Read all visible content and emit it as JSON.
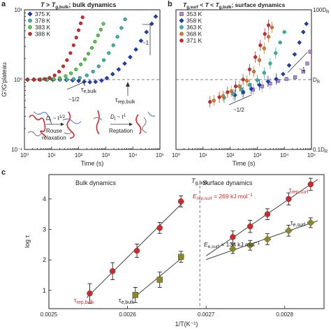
{
  "chart_data": [
    {
      "type": "scatter",
      "panel_label": "a",
      "title_parts": [
        "T",
        " > ",
        "T",
        "g,bulk",
        "; bulk dynamics"
      ],
      "xlabel": "Time (s)",
      "ylabel": "G′/G′plateau",
      "xscale": "log",
      "yscale": "log",
      "xlim": [
        1,
        100000
      ],
      "ylim": [
        0.1,
        10
      ],
      "x_ticks": [
        1,
        10,
        100,
        1000,
        10000,
        100000
      ],
      "x_tick_labels": [
        "10⁰",
        "10¹",
        "10²",
        "10³",
        "10⁴",
        "10⁵"
      ],
      "y_ticks": [
        0.1,
        1,
        10
      ],
      "y_tick_labels": [
        "10⁻¹",
        "10⁰",
        "10¹"
      ],
      "legend_position": "top-left",
      "series": [
        {
          "name": "375 K",
          "color": "#1a3fb4",
          "marker": "diamond",
          "points": [
            [
              1.3,
              1.0
            ],
            [
              2.2,
              1.0
            ],
            [
              3.8,
              1.0
            ],
            [
              6.5,
              1.0
            ],
            [
              11,
              1.0
            ],
            [
              20,
              1.0
            ],
            [
              35,
              0.99
            ],
            [
              60,
              0.98
            ],
            [
              100,
              0.96
            ],
            [
              160,
              0.93
            ],
            [
              260,
              0.92
            ],
            [
              420,
              0.93
            ],
            [
              700,
              0.97
            ],
            [
              1100,
              1.05
            ],
            [
              1800,
              1.2
            ],
            [
              3000,
              1.4
            ],
            [
              5000,
              1.7
            ],
            [
              8000,
              2.1
            ],
            [
              13000,
              2.7
            ],
            [
              20000,
              3.6
            ],
            [
              32000,
              4.8
            ],
            [
              50000,
              6.3
            ],
            [
              70000,
              8.0
            ]
          ]
        },
        {
          "name": "378 K",
          "color": "#2fb8a2",
          "marker": "circle",
          "points": [
            [
              1.3,
              1.0
            ],
            [
              2.3,
              1.0
            ],
            [
              4,
              1.0
            ],
            [
              7,
              1.0
            ],
            [
              12,
              1.0
            ],
            [
              21,
              1.0
            ],
            [
              37,
              1.0
            ],
            [
              65,
              1.02
            ],
            [
              110,
              1.06
            ],
            [
              200,
              1.15
            ],
            [
              340,
              1.3
            ],
            [
              550,
              1.55
            ],
            [
              850,
              1.9
            ],
            [
              1300,
              2.4
            ],
            [
              1900,
              3.1
            ],
            [
              2700,
              4.1
            ],
            [
              3800,
              5.5
            ],
            [
              5200,
              7.3
            ]
          ]
        },
        {
          "name": "383 K",
          "color": "#52c948",
          "marker": "circle",
          "points": [
            [
              1.3,
              1.0
            ],
            [
              2.3,
              1.0
            ],
            [
              4,
              1.0
            ],
            [
              7,
              1.0
            ],
            [
              12,
              1.02
            ],
            [
              20,
              1.05
            ],
            [
              33,
              1.12
            ],
            [
              52,
              1.23
            ],
            [
              80,
              1.4
            ],
            [
              120,
              1.65
            ],
            [
              170,
              1.95
            ],
            [
              230,
              2.35
            ],
            [
              310,
              2.85
            ],
            [
              400,
              3.5
            ],
            [
              520,
              4.3
            ],
            [
              660,
              5.2
            ],
            [
              820,
              6.3
            ]
          ]
        },
        {
          "name": "388 K",
          "color": "#d42828",
          "marker": "circle",
          "points": [
            [
              1.3,
              1.0
            ],
            [
              2.2,
              1.0
            ],
            [
              3.5,
              1.0
            ],
            [
              5.5,
              1.02
            ],
            [
              8.5,
              1.06
            ],
            [
              13,
              1.15
            ],
            [
              19,
              1.3
            ],
            [
              27,
              1.55
            ],
            [
              37,
              1.9
            ],
            [
              50,
              2.4
            ],
            [
              65,
              3.1
            ],
            [
              82,
              4.0
            ],
            [
              100,
              5.1
            ],
            [
              120,
              6.4
            ],
            [
              140,
              7.8
            ]
          ]
        }
      ],
      "annotations": [
        "~1",
        "~1/2",
        "τe,bulk",
        "τrep,bulk",
        "Rouse relaxation",
        "Reptation",
        "Dt ~ t1/2",
        "Dt ~ t1"
      ],
      "inset_labels": {
        "rouse_1": "Rouse",
        "rouse_2": "relaxation",
        "reptation": "Reptation",
        "slope_half": "~1/2",
        "slope_one": "~1",
        "tau_e": "τ",
        "tau_e_sub": "e,bulk",
        "tau_rep": "τ",
        "tau_rep_sub": "rep,bulk",
        "law_half_a": "D",
        "law_half_b": "t",
        "law_half_c": " ~ t",
        "law_half_d": "1/2",
        "law_one_a": "D",
        "law_one_b": "t",
        "law_one_c": " ~ t",
        "law_one_d": "1"
      }
    },
    {
      "type": "scatter",
      "panel_label": "b",
      "title_parts": [
        "T",
        "g,surf",
        " < ",
        "T",
        " < ",
        "T",
        "g,bulk",
        "; surface dynamics"
      ],
      "xlabel": "Time (s)",
      "xscale": "log",
      "yscale": "log",
      "xlim": [
        1,
        100000
      ],
      "ylim": [
        0.1,
        10
      ],
      "x_ticks": [
        1,
        10,
        100,
        1000,
        10000,
        100000
      ],
      "x_tick_labels": [
        "10⁰",
        "10¹",
        "10²",
        "10³",
        "10⁴",
        "10⁵"
      ],
      "right_ticks": [
        10,
        1,
        0.1
      ],
      "right_tick_labels": [
        "100D",
        "D",
        "0.1D"
      ],
      "right_tick_subs": [
        "R",
        "R",
        "R"
      ],
      "legend_position": "top-left",
      "series": [
        {
          "name": "353 K",
          "color": "#b085e0",
          "marker": "square",
          "points": [
            [
              300,
              0.66
            ],
            [
              700,
              0.72
            ],
            [
              1500,
              0.8
            ],
            [
              3000,
              0.88
            ],
            [
              6000,
              0.96
            ],
            [
              12000,
              1.02
            ],
            [
              25000,
              1.08
            ],
            [
              50000,
              1.3
            ],
            [
              70000,
              1.7
            ],
            [
              90000,
              2.5
            ]
          ]
        },
        {
          "name": "358 K",
          "color": "#1a3fb4",
          "marker": "diamond",
          "points": [
            [
              150,
              0.6
            ],
            [
              300,
              0.66
            ],
            [
              600,
              0.74
            ],
            [
              1200,
              0.84
            ],
            [
              2500,
              0.94
            ],
            [
              5000,
              1.02
            ],
            [
              9000,
              1.2
            ],
            [
              15000,
              1.6
            ],
            [
              24000,
              2.3
            ],
            [
              36000,
              3.4
            ],
            [
              50000,
              4.8
            ],
            [
              65000,
              6.3
            ]
          ]
        },
        {
          "name": "363 K",
          "color": "#2fb8a2",
          "marker": "circle",
          "points": [
            [
              60,
              0.55
            ],
            [
              130,
              0.62
            ],
            [
              260,
              0.72
            ],
            [
              520,
              0.84
            ],
            [
              1000,
              0.98
            ],
            [
              1800,
              1.25
            ],
            [
              3000,
              1.7
            ],
            [
              4800,
              2.4
            ],
            [
              7000,
              3.4
            ],
            [
              10000,
              4.8
            ]
          ]
        },
        {
          "name": "368 K",
          "color": "#e07820",
          "marker": "circle",
          "points": [
            [
              25,
              0.5
            ],
            [
              55,
              0.58
            ],
            [
              110,
              0.68
            ],
            [
              220,
              0.8
            ],
            [
              420,
              0.96
            ],
            [
              750,
              1.3
            ],
            [
              1200,
              1.9
            ],
            [
              1800,
              2.8
            ],
            [
              2600,
              4.1
            ],
            [
              3500,
              5.6
            ]
          ]
        },
        {
          "name": "371 K",
          "color": "#d42828",
          "marker": "circle",
          "points": [
            [
              18,
              0.48
            ],
            [
              40,
              0.56
            ],
            [
              80,
              0.66
            ],
            [
              160,
              0.8
            ],
            [
              300,
              1.0
            ],
            [
              520,
              1.4
            ],
            [
              850,
              2.1
            ],
            [
              1300,
              3.1
            ],
            [
              1900,
              4.5
            ],
            [
              2600,
              6.0
            ]
          ]
        }
      ],
      "annotations": [
        "~1",
        "~1/2",
        "DR",
        "100DR",
        "0.1DR"
      ],
      "inset_labels": {
        "slope_one": "~1",
        "slope_half": "~1/2"
      }
    },
    {
      "type": "scatter",
      "panel_label": "c",
      "xlabel": "1/T(K⁻¹)",
      "ylabel": "log τ",
      "xlim": [
        0.0025,
        0.00285
      ],
      "ylim": [
        0.4,
        4.8
      ],
      "x_ticks": [
        0.0025,
        0.0026,
        0.0027,
        0.0028
      ],
      "x_tick_labels": [
        "0.0025",
        "0.0026",
        "0.0027",
        "0.0028"
      ],
      "y_ticks": [
        1,
        2,
        3,
        4
      ],
      "y_tick_labels": [
        "1",
        "2",
        "3",
        "4"
      ],
      "vertical_marker": {
        "x": 0.002692,
        "label": "T",
        "label_sub": "g,bulk"
      },
      "region_labels": [
        "Bulk dynamics",
        "Surface dynamics"
      ],
      "series": [
        {
          "name": "τrep,bulk",
          "color": "#d42828",
          "marker": "circle",
          "points": [
            [
              0.002552,
              0.9
            ],
            [
              0.002581,
              1.63
            ],
            [
              0.002612,
              2.3
            ],
            [
              0.002641,
              3.05
            ],
            [
              0.002668,
              3.92
            ]
          ],
          "yerr": [
            0.32,
            0.28,
            0.22,
            0.18,
            0.18
          ]
        },
        {
          "name": "τe,bulk",
          "color": "#8a8a24",
          "marker": "square",
          "points": [
            [
              0.00261,
              0.85
            ],
            [
              0.002641,
              1.35
            ],
            [
              0.002668,
              2.1
            ]
          ],
          "yerr": [
            0.25,
            0.25,
            0.18
          ]
        },
        {
          "name": "τrep,surf",
          "color": "#d42828",
          "marker": "circle",
          "points": [
            [
              0.002734,
              2.75
            ],
            [
              0.002756,
              3.1
            ],
            [
              0.002778,
              3.5
            ],
            [
              0.002805,
              4.0
            ],
            [
              0.002833,
              4.48
            ]
          ],
          "yerr": [
            0.2,
            0.2,
            0.18,
            0.2,
            0.2
          ]
        },
        {
          "name": "τe,surf",
          "color": "#8a8a24",
          "marker": "diamond",
          "points": [
            [
              0.002734,
              2.36
            ],
            [
              0.002756,
              2.48
            ],
            [
              0.002778,
              2.68
            ],
            [
              0.002805,
              2.96
            ],
            [
              0.002833,
              3.22
            ]
          ],
          "yerr": [
            0.15,
            0.16,
            0.18,
            0.18,
            0.16
          ]
        }
      ],
      "fits": [
        {
          "series": "τrep,bulk",
          "x": [
            0.002548,
            0.002672
          ]
        },
        {
          "series": "τe,bulk",
          "x": [
            0.002606,
            0.002672
          ]
        },
        {
          "series": "τrep,surf",
          "x": [
            0.0027,
            0.002842
          ]
        },
        {
          "series": "τe,surf",
          "x": [
            0.0027,
            0.002842
          ]
        }
      ],
      "annotations": [
        "Erep,surf = 269 kJ mol⁻¹",
        "Ee,surf = 134 kJ mol⁻¹"
      ],
      "inset_labels": {
        "E_rep_a": "E",
        "E_rep_b": "rep,surf",
        "E_rep_c": " = 269 kJ mol",
        "E_rep_d": "−1",
        "E_e_a": "E",
        "E_e_b": "e,surf",
        "E_e_c": " = 134 kJ mol",
        "E_e_d": "−1",
        "rep_surf_a": "τ",
        "rep_surf_b": "rep,surf",
        "e_surf_a": "τ",
        "e_surf_b": "e,surf",
        "rep_bulk_a": "τ",
        "rep_bulk_b": "rep,bulk",
        "e_bulk_a": "τ",
        "e_bulk_b": "e,bulk"
      }
    }
  ]
}
